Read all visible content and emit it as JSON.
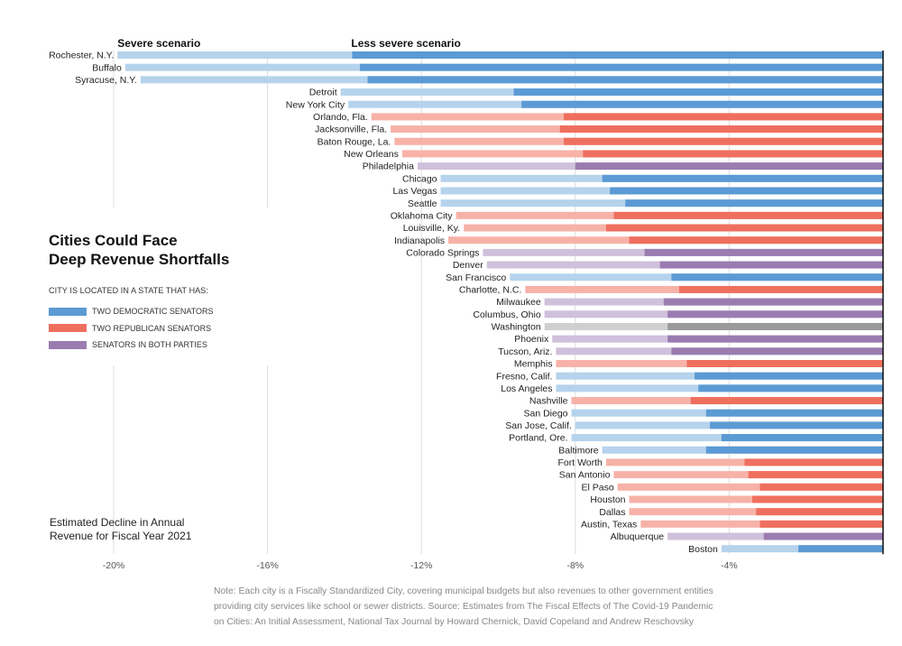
{
  "chart_data": {
    "type": "bar",
    "orientation": "horizontal",
    "title": "Cities Could Face Deep Revenue Shortfalls",
    "title_lines": [
      "Cities Could Face",
      "Deep Revenue Shortfalls"
    ],
    "scenario_labels": {
      "severe": "Severe scenario",
      "less_severe": "Less severe scenario"
    },
    "ylabel_lines": [
      "Estimated Decline in Annual",
      "Revenue for Fiscal Year 2021"
    ],
    "xlim": [
      -20,
      0
    ],
    "x_ticks": [
      {
        "value": -20,
        "label": "-20%"
      },
      {
        "value": -16,
        "label": "-16%"
      },
      {
        "value": -12,
        "label": "-12%"
      },
      {
        "value": -8,
        "label": "-8%"
      },
      {
        "value": -4,
        "label": "-4%"
      }
    ],
    "legend": {
      "heading": "CITY IS LOCATED IN A STATE THAT HAS:",
      "items": [
        {
          "key": "D",
          "label": "TWO DEMOCRATIC SENATORS"
        },
        {
          "key": "R",
          "label": "TWO REPUBLICAN SENATORS"
        },
        {
          "key": "M",
          "label": "SENATORS IN BOTH PARTIES"
        }
      ]
    },
    "colors": {
      "D": {
        "dark": "#5b9ad4",
        "light": "#b5d3ec"
      },
      "R": {
        "dark": "#ef6f5f",
        "light": "#f7b2a8"
      },
      "M": {
        "dark": "#9a7cb1",
        "light": "#cfc0db"
      },
      "N": {
        "dark": "#9a9a9a",
        "light": "#cfcfcf"
      }
    },
    "series": [
      {
        "name": "Severe scenario",
        "shade": "light"
      },
      {
        "name": "Less severe scenario",
        "shade": "dark"
      }
    ],
    "categories": [
      {
        "city": "Rochester, N.Y.",
        "party": "D",
        "severe": -19.9,
        "less_severe": -13.8
      },
      {
        "city": "Buffalo",
        "party": "D",
        "severe": -19.7,
        "less_severe": -13.6
      },
      {
        "city": "Syracuse, N.Y.",
        "party": "D",
        "severe": -19.3,
        "less_severe": -13.4
      },
      {
        "city": "Detroit",
        "party": "D",
        "severe": -14.1,
        "less_severe": -9.6
      },
      {
        "city": "New York City",
        "party": "D",
        "severe": -13.9,
        "less_severe": -9.4
      },
      {
        "city": "Orlando, Fla.",
        "party": "R",
        "severe": -13.3,
        "less_severe": -8.3
      },
      {
        "city": "Jacksonville, Fla.",
        "party": "R",
        "severe": -12.8,
        "less_severe": -8.4
      },
      {
        "city": "Baton Rouge, La.",
        "party": "R",
        "severe": -12.7,
        "less_severe": -8.3
      },
      {
        "city": "New Orleans",
        "party": "R",
        "severe": -12.5,
        "less_severe": -7.8
      },
      {
        "city": "Philadelphia",
        "party": "M",
        "severe": -12.1,
        "less_severe": -8.0
      },
      {
        "city": "Chicago",
        "party": "D",
        "severe": -11.5,
        "less_severe": -7.3
      },
      {
        "city": "Las Vegas",
        "party": "D",
        "severe": -11.5,
        "less_severe": -7.1
      },
      {
        "city": "Seattle",
        "party": "D",
        "severe": -11.5,
        "less_severe": -6.7
      },
      {
        "city": "Oklahoma City",
        "party": "R",
        "severe": -11.1,
        "less_severe": -7.0
      },
      {
        "city": "Louisville, Ky.",
        "party": "R",
        "severe": -10.9,
        "less_severe": -7.2
      },
      {
        "city": "Indianapolis",
        "party": "R",
        "severe": -11.3,
        "less_severe": -6.6
      },
      {
        "city": "Colorado Springs",
        "party": "M",
        "severe": -10.4,
        "less_severe": -6.2
      },
      {
        "city": "Denver",
        "party": "M",
        "severe": -10.3,
        "less_severe": -5.8
      },
      {
        "city": "San Francisco",
        "party": "D",
        "severe": -9.7,
        "less_severe": -5.5
      },
      {
        "city": "Charlotte, N.C.",
        "party": "R",
        "severe": -9.3,
        "less_severe": -5.3
      },
      {
        "city": "Milwaukee",
        "party": "M",
        "severe": -8.8,
        "less_severe": -5.7
      },
      {
        "city": "Columbus, Ohio",
        "party": "M",
        "severe": -8.8,
        "less_severe": -5.6
      },
      {
        "city": "Washington",
        "party": "N",
        "severe": -8.8,
        "less_severe": -5.6
      },
      {
        "city": "Phoenix",
        "party": "M",
        "severe": -8.6,
        "less_severe": -5.6
      },
      {
        "city": "Tucson, Ariz.",
        "party": "M",
        "severe": -8.5,
        "less_severe": -5.5
      },
      {
        "city": "Memphis",
        "party": "R",
        "severe": -8.5,
        "less_severe": -5.1
      },
      {
        "city": "Fresno, Calif.",
        "party": "D",
        "severe": -8.5,
        "less_severe": -4.9
      },
      {
        "city": "Los Angeles",
        "party": "D",
        "severe": -8.5,
        "less_severe": -4.8
      },
      {
        "city": "Nashville",
        "party": "R",
        "severe": -8.1,
        "less_severe": -5.0
      },
      {
        "city": "San Diego",
        "party": "D",
        "severe": -8.1,
        "less_severe": -4.6
      },
      {
        "city": "San Jose, Calif.",
        "party": "D",
        "severe": -8.0,
        "less_severe": -4.5
      },
      {
        "city": "Portland, Ore.",
        "party": "D",
        "severe": -8.1,
        "less_severe": -4.2
      },
      {
        "city": "Baltimore",
        "party": "D",
        "severe": -7.3,
        "less_severe": -4.6
      },
      {
        "city": "Fort Worth",
        "party": "R",
        "severe": -7.2,
        "less_severe": -3.6
      },
      {
        "city": "San Antonio",
        "party": "R",
        "severe": -7.0,
        "less_severe": -3.5
      },
      {
        "city": "El Paso",
        "party": "R",
        "severe": -6.9,
        "less_severe": -3.2
      },
      {
        "city": "Houston",
        "party": "R",
        "severe": -6.6,
        "less_severe": -3.4
      },
      {
        "city": "Dallas",
        "party": "R",
        "severe": -6.6,
        "less_severe": -3.3
      },
      {
        "city": "Austin, Texas",
        "party": "R",
        "severe": -6.3,
        "less_severe": -3.2
      },
      {
        "city": "Albuquerque",
        "party": "M",
        "severe": -5.6,
        "less_severe": -3.1
      },
      {
        "city": "Boston",
        "party": "D",
        "severe": -4.2,
        "less_severe": -2.2
      }
    ]
  },
  "note": "Note: Each city is a Fiscally Standardized City, covering municipal budgets but also revenues to other government entities providing city services like school or sewer districts. Source: Estimates from The Fiscal Effects of The Covid-19 Pandemic on Cities: An Initial Assessment, National Tax Journal by Howard Chernick, David Copeland and Andrew Reschovsky",
  "colors": {
    "text": "#222222",
    "note": "#888888",
    "gridline": "#dddddd",
    "axis": "#111111"
  }
}
